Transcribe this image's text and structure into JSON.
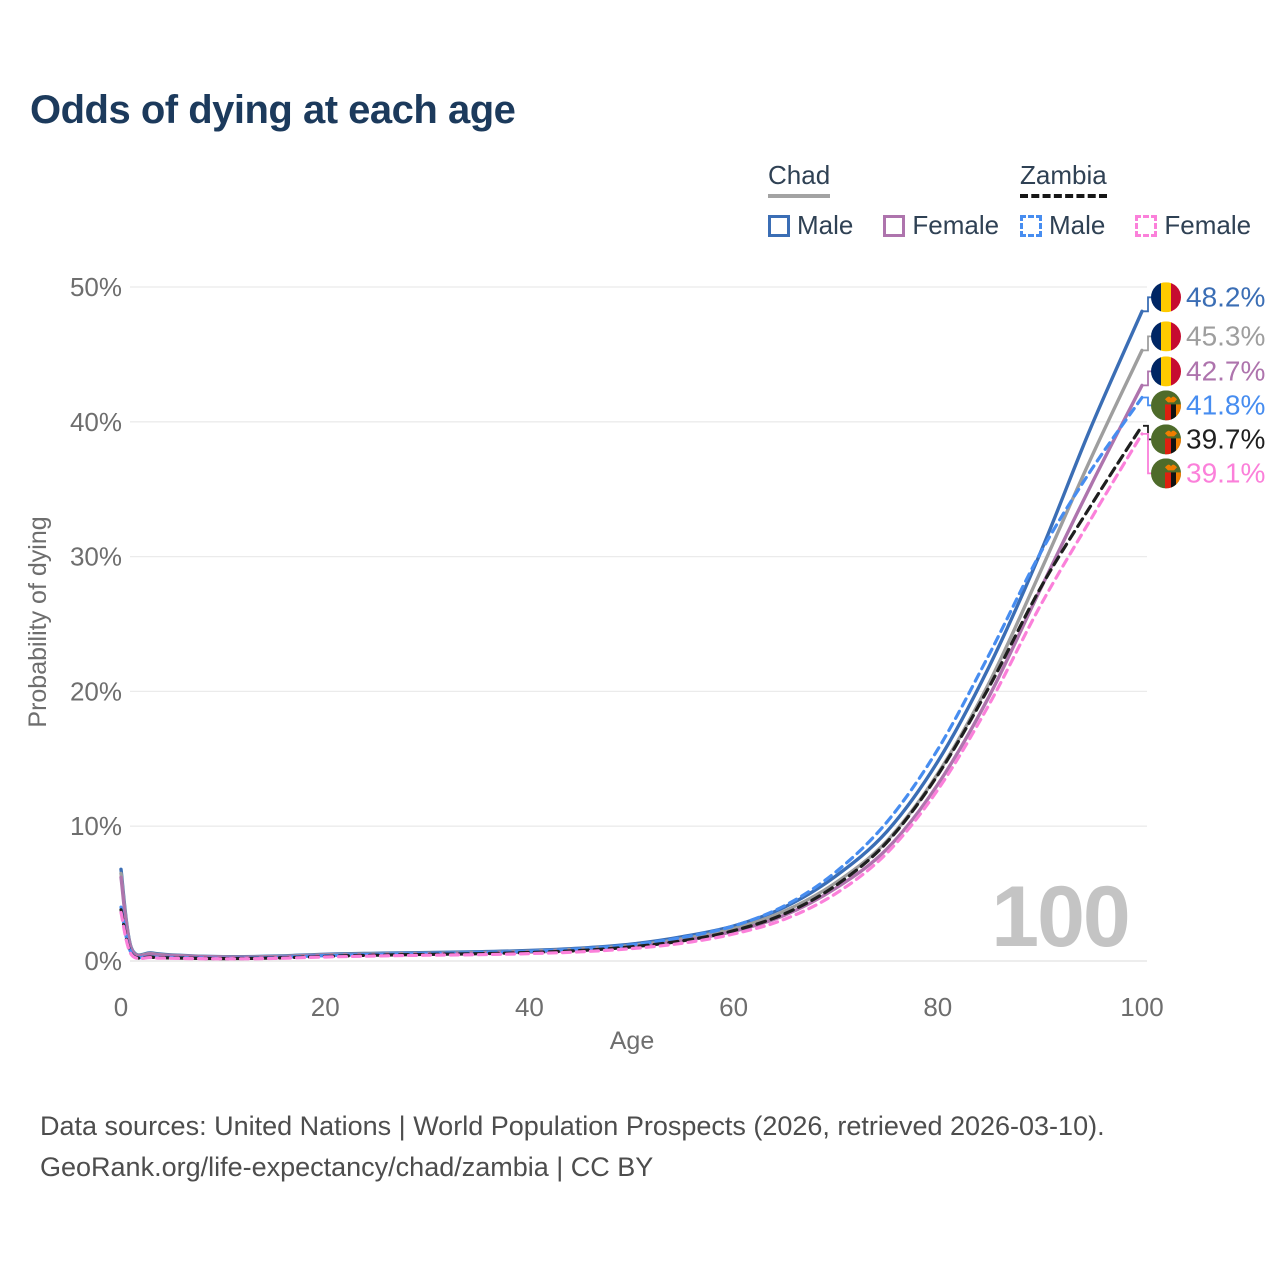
{
  "header": {
    "title": "Odds of dying at each age"
  },
  "legend": {
    "groups": [
      {
        "label": "Chad",
        "style": "solid",
        "items": [
          {
            "label": "Male",
            "series": "chad-male"
          },
          {
            "label": "Female",
            "series": "chad-female"
          }
        ]
      },
      {
        "label": "Zambia",
        "style": "dashed",
        "items": [
          {
            "label": "Male",
            "series": "zambia-male"
          },
          {
            "label": "Female",
            "series": "zambia-female"
          }
        ]
      }
    ]
  },
  "chart_data": {
    "type": "line",
    "title": "Odds of dying at each age",
    "xlabel": "Age",
    "ylabel": "Probability of dying",
    "xlim": [
      0,
      100
    ],
    "ylim": [
      0,
      50
    ],
    "x_ticks": [
      0,
      20,
      40,
      60,
      80,
      100
    ],
    "y_ticks": [
      0,
      10,
      20,
      30,
      40,
      50
    ],
    "y_tick_suffix": "%",
    "grid": true,
    "legend_position": "top-right",
    "watermark": "100",
    "series": [
      {
        "id": "chad-male",
        "name": "Chad Male",
        "color": "#3b6eb5",
        "dash": "solid",
        "flag": "chad",
        "end_label": "48.2%",
        "label_color": "#3b6eb5",
        "points": [
          [
            0,
            6.8
          ],
          [
            1,
            1.0
          ],
          [
            3,
            0.6
          ],
          [
            5,
            0.45
          ],
          [
            10,
            0.32
          ],
          [
            15,
            0.36
          ],
          [
            20,
            0.5
          ],
          [
            25,
            0.57
          ],
          [
            30,
            0.62
          ],
          [
            35,
            0.68
          ],
          [
            40,
            0.78
          ],
          [
            45,
            0.95
          ],
          [
            50,
            1.25
          ],
          [
            55,
            1.8
          ],
          [
            60,
            2.6
          ],
          [
            65,
            4.0
          ],
          [
            70,
            6.3
          ],
          [
            75,
            9.6
          ],
          [
            80,
            14.8
          ],
          [
            85,
            21.8
          ],
          [
            90,
            30.2
          ],
          [
            95,
            39.6
          ],
          [
            100,
            48.2
          ]
        ]
      },
      {
        "id": "chad-both",
        "name": "Chad",
        "color": "#9e9e9e",
        "dash": "solid",
        "flag": "chad",
        "end_label": "45.3%",
        "label_color": "#9e9e9e",
        "points": [
          [
            0,
            6.5
          ],
          [
            1,
            0.95
          ],
          [
            3,
            0.56
          ],
          [
            5,
            0.42
          ],
          [
            10,
            0.3
          ],
          [
            15,
            0.33
          ],
          [
            20,
            0.46
          ],
          [
            25,
            0.52
          ],
          [
            30,
            0.57
          ],
          [
            35,
            0.62
          ],
          [
            40,
            0.72
          ],
          [
            45,
            0.88
          ],
          [
            50,
            1.15
          ],
          [
            55,
            1.65
          ],
          [
            60,
            2.4
          ],
          [
            65,
            3.7
          ],
          [
            70,
            5.8
          ],
          [
            75,
            8.9
          ],
          [
            80,
            13.9
          ],
          [
            85,
            20.6
          ],
          [
            90,
            28.8
          ],
          [
            95,
            37.3
          ],
          [
            100,
            45.3
          ]
        ]
      },
      {
        "id": "chad-female",
        "name": "Chad Female",
        "color": "#ae74ad",
        "dash": "solid",
        "flag": "chad",
        "end_label": "42.7%",
        "label_color": "#ae74ad",
        "points": [
          [
            0,
            6.2
          ],
          [
            1,
            0.9
          ],
          [
            3,
            0.52
          ],
          [
            5,
            0.4
          ],
          [
            10,
            0.28
          ],
          [
            15,
            0.3
          ],
          [
            20,
            0.42
          ],
          [
            25,
            0.47
          ],
          [
            30,
            0.52
          ],
          [
            35,
            0.57
          ],
          [
            40,
            0.66
          ],
          [
            45,
            0.8
          ],
          [
            50,
            1.05
          ],
          [
            55,
            1.5
          ],
          [
            60,
            2.2
          ],
          [
            65,
            3.4
          ],
          [
            70,
            5.4
          ],
          [
            75,
            8.3
          ],
          [
            80,
            13.1
          ],
          [
            85,
            19.6
          ],
          [
            90,
            27.5
          ],
          [
            95,
            35.3
          ],
          [
            100,
            42.7
          ]
        ]
      },
      {
        "id": "zambia-male",
        "name": "Zambia Male",
        "color": "#478df0",
        "dash": "dashed",
        "flag": "zambia",
        "end_label": "41.8%",
        "label_color": "#478df0",
        "points": [
          [
            0,
            4.0
          ],
          [
            1,
            0.6
          ],
          [
            3,
            0.32
          ],
          [
            5,
            0.26
          ],
          [
            10,
            0.21
          ],
          [
            15,
            0.26
          ],
          [
            20,
            0.4
          ],
          [
            25,
            0.5
          ],
          [
            30,
            0.56
          ],
          [
            35,
            0.62
          ],
          [
            40,
            0.72
          ],
          [
            45,
            0.9
          ],
          [
            50,
            1.2
          ],
          [
            55,
            1.75
          ],
          [
            60,
            2.6
          ],
          [
            65,
            4.1
          ],
          [
            70,
            6.6
          ],
          [
            75,
            10.3
          ],
          [
            80,
            15.7
          ],
          [
            85,
            22.7
          ],
          [
            90,
            30.2
          ],
          [
            95,
            36.4
          ],
          [
            100,
            41.8
          ]
        ]
      },
      {
        "id": "zambia-both",
        "name": "Zambia",
        "color": "#1f1f1f",
        "dash": "dashed",
        "flag": "zambia",
        "end_label": "39.7%",
        "label_color": "#1f1f1f",
        "points": [
          [
            0,
            3.8
          ],
          [
            1,
            0.55
          ],
          [
            3,
            0.28
          ],
          [
            5,
            0.23
          ],
          [
            10,
            0.18
          ],
          [
            15,
            0.22
          ],
          [
            20,
            0.34
          ],
          [
            25,
            0.43
          ],
          [
            30,
            0.49
          ],
          [
            35,
            0.54
          ],
          [
            40,
            0.63
          ],
          [
            45,
            0.78
          ],
          [
            50,
            1.05
          ],
          [
            55,
            1.5
          ],
          [
            60,
            2.25
          ],
          [
            65,
            3.5
          ],
          [
            70,
            5.6
          ],
          [
            75,
            8.8
          ],
          [
            80,
            13.8
          ],
          [
            85,
            20.3
          ],
          [
            90,
            27.6
          ],
          [
            95,
            33.8
          ],
          [
            100,
            39.7
          ]
        ]
      },
      {
        "id": "zambia-female",
        "name": "Zambia Female",
        "color": "#fb80da",
        "dash": "dashed",
        "flag": "zambia",
        "end_label": "39.1%",
        "label_color": "#fb80da",
        "points": [
          [
            0,
            3.6
          ],
          [
            1,
            0.5
          ],
          [
            3,
            0.25
          ],
          [
            5,
            0.2
          ],
          [
            10,
            0.16
          ],
          [
            15,
            0.19
          ],
          [
            20,
            0.3
          ],
          [
            25,
            0.37
          ],
          [
            30,
            0.43
          ],
          [
            35,
            0.47
          ],
          [
            40,
            0.55
          ],
          [
            45,
            0.68
          ],
          [
            50,
            0.92
          ],
          [
            55,
            1.32
          ],
          [
            60,
            2.0
          ],
          [
            65,
            3.1
          ],
          [
            70,
            5.0
          ],
          [
            75,
            8.0
          ],
          [
            80,
            12.7
          ],
          [
            85,
            19.0
          ],
          [
            90,
            26.3
          ],
          [
            95,
            32.8
          ],
          [
            100,
            39.1
          ]
        ]
      }
    ],
    "flag_colors": {
      "chad": {
        "blue": "#002664",
        "yellow": "#fecb00",
        "red": "#c60c30"
      },
      "zambia": {
        "green": "#4e6b2a",
        "red": "#de2010",
        "black": "#121212",
        "orange": "#ef7d00"
      }
    },
    "axis_color": "#6e6e6e",
    "grid_color": "#ebebeb",
    "watermark_color": "#c4c4c4"
  },
  "footer": {
    "line1": "Data sources: United Nations | World Population Prospects (2026, retrieved 2026-03-10).",
    "line2": "GeoRank.org/life-expectancy/chad/zambia | CC BY"
  }
}
